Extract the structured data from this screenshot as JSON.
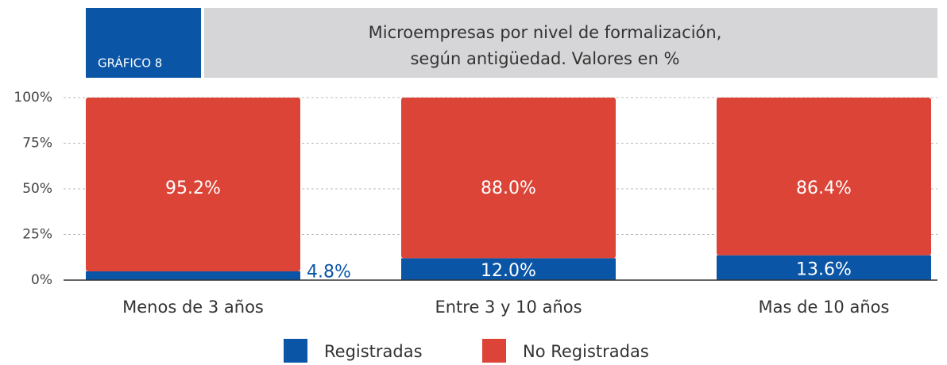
{
  "chart_data": {
    "type": "stacked_bar",
    "label": "GRÁFICO 8",
    "title": [
      "Microempresas por nivel de formalización,",
      "según antigüedad. Valores en %"
    ],
    "categories": [
      "Menos de 3 años",
      "Entre 3 y 10 años",
      "Mas de 10 años"
    ],
    "series": [
      {
        "name": "Registradas",
        "color": "#0a55a6",
        "values": [
          4.8,
          12.0,
          13.6
        ],
        "value_labels": [
          "4.8%",
          "12.0%",
          "13.6%"
        ]
      },
      {
        "name": "No Registradas",
        "color": "#db4437",
        "values": [
          95.2,
          88.0,
          86.4
        ],
        "value_labels": [
          "95.2%",
          "88.0%",
          "86.4%"
        ]
      }
    ],
    "ylim": [
      0,
      100
    ],
    "yticks": [
      {
        "value": 0,
        "label": "0%"
      },
      {
        "value": 25,
        "label": "25%"
      },
      {
        "value": 50,
        "label": "50%"
      },
      {
        "value": 75,
        "label": "75%"
      },
      {
        "value": 100,
        "label": "100%"
      }
    ],
    "grid": true
  }
}
